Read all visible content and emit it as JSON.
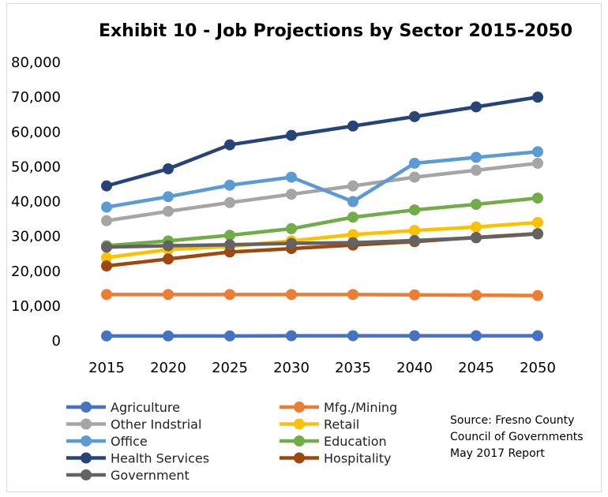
{
  "chart_data": {
    "type": "line",
    "title": "Exhibit 10 - Job Projections by Sector 2015-2050",
    "xlabel": "",
    "ylabel": "",
    "ylim": [
      0,
      80000
    ],
    "yticks": [
      "0",
      "10,000",
      "20,000",
      "30,000",
      "40,000",
      "50,000",
      "60,000",
      "70,000",
      "80,000"
    ],
    "categories": [
      "2015",
      "2020",
      "2025",
      "2030",
      "2035",
      "2040",
      "2045",
      "2050"
    ],
    "grid": false,
    "legend_position": "bottom",
    "series": [
      {
        "name": "Agriculture",
        "color": "#4472c4",
        "values": [
          1400,
          1400,
          1400,
          1450,
          1450,
          1450,
          1450,
          1450
        ]
      },
      {
        "name": "Mfg./Mining",
        "color": "#ed7d31",
        "values": [
          13300,
          13300,
          13300,
          13300,
          13300,
          13200,
          13100,
          13000
        ]
      },
      {
        "name": "Other Indstrial",
        "color": "#a5a5a5",
        "values": [
          34500,
          37200,
          39700,
          42100,
          44500,
          47000,
          49000,
          51000
        ]
      },
      {
        "name": "Retail",
        "color": "#ffc000",
        "values": [
          23900,
          26200,
          27100,
          28700,
          30500,
          31700,
          32700,
          34000
        ]
      },
      {
        "name": "Office",
        "color": "#5b9bd5",
        "values": [
          38400,
          41400,
          44700,
          47000,
          40000,
          51000,
          52700,
          54300
        ]
      },
      {
        "name": "Education",
        "color": "#70ad47",
        "values": [
          27300,
          28700,
          30300,
          32200,
          35500,
          37600,
          39200,
          41000
        ]
      },
      {
        "name": "Health Services",
        "color": "#264478",
        "values": [
          44500,
          49400,
          56300,
          59000,
          61700,
          64400,
          67200,
          70000
        ]
      },
      {
        "name": "Hospitality",
        "color": "#9e480e",
        "values": [
          21500,
          23500,
          25500,
          26500,
          27500,
          28500,
          29700,
          30800
        ]
      },
      {
        "name": "Government",
        "color": "#636363",
        "values": [
          26900,
          27300,
          27600,
          28000,
          28200,
          28800,
          29600,
          30700
        ]
      }
    ],
    "annotation": [
      "Source: Fresno County",
      "Council of Governments",
      "May 2017 Report"
    ]
  }
}
